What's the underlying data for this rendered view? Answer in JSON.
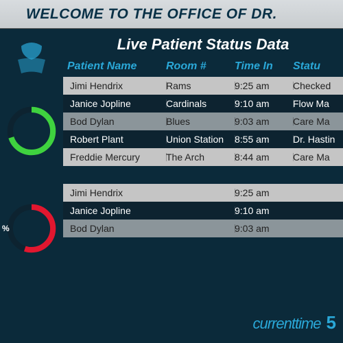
{
  "header": {
    "title": "WELCOME TO THE OFFICE OF DR."
  },
  "subtitle": "Live Patient Status Data",
  "columns": {
    "name": "Patient Name",
    "room": "Room #",
    "time": "Time In",
    "status": "Statu"
  },
  "table1": [
    {
      "name": "Jimi Hendrix",
      "room": "Rams",
      "time": "9:25 am",
      "status": "Checked"
    },
    {
      "name": "Janice Jopline",
      "room": "Cardinals",
      "time": "9:10 am",
      "status": "Flow Ma"
    },
    {
      "name": "Bod Dylan",
      "room": "Blues",
      "time": "9:03 am",
      "status": "Care Ma"
    },
    {
      "name": "Robert Plant",
      "room": "Union Station",
      "time": "8:55 am",
      "status": "Dr. Hastin"
    },
    {
      "name": "Freddie Mercury",
      "room": "The Arch",
      "time": "8:44 am",
      "status": "Care Ma"
    }
  ],
  "table2": [
    {
      "name": "Jimi Hendrix",
      "room": "",
      "time": "9:25 am",
      "status": ""
    },
    {
      "name": "Janice Jopline",
      "room": "",
      "time": "9:10 am",
      "status": ""
    },
    {
      "name": "Bod Dylan",
      "room": "",
      "time": "9:03 am",
      "status": ""
    }
  ],
  "gauge1": {
    "track_color": "#0d2330",
    "fill_color": "#3fd23f",
    "percent": 70,
    "stroke_width": 10
  },
  "gauge2": {
    "track_color": "#0d2330",
    "fill_color": "#e2172f",
    "percent": 55,
    "stroke_width": 10,
    "label": "%"
  },
  "footer": {
    "label": "currenttime",
    "value": "5"
  },
  "row_styles": {
    "light_bg": "#c5c5c5",
    "dark_bg": "#0d2330",
    "mid_bg": "#8b959a"
  }
}
